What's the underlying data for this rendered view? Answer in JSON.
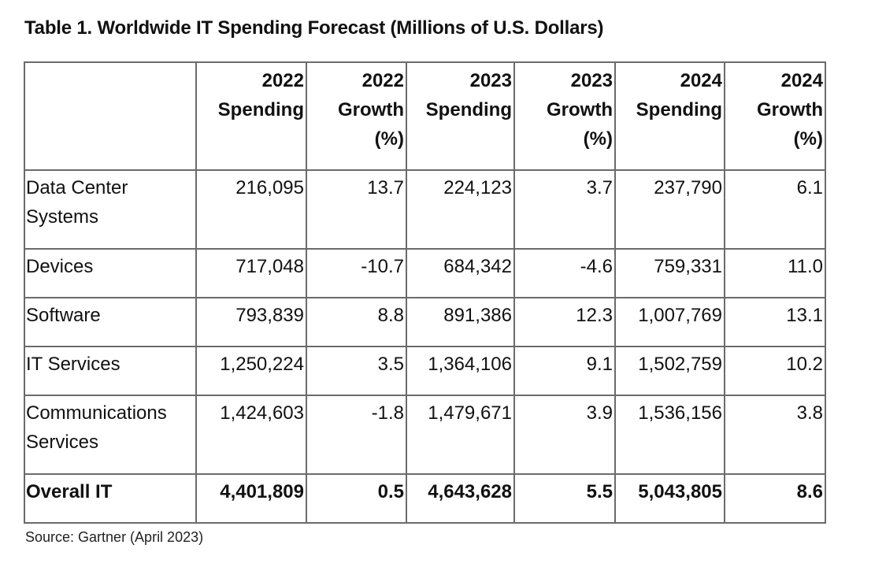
{
  "title": "Table 1. Worldwide IT Spending Forecast (Millions of U.S. Dollars)",
  "table": {
    "columns": [
      {
        "lines": [
          "",
          "",
          ""
        ]
      },
      {
        "lines": [
          "2022",
          "Spending",
          ""
        ]
      },
      {
        "lines": [
          "2022",
          "Growth",
          "(%)"
        ]
      },
      {
        "lines": [
          "2023",
          "Spending",
          ""
        ]
      },
      {
        "lines": [
          "2023",
          "Growth",
          "(%)"
        ]
      },
      {
        "lines": [
          "2024",
          "Spending",
          ""
        ]
      },
      {
        "lines": [
          "2024",
          "Growth",
          "(%)"
        ]
      }
    ],
    "rows": [
      {
        "label_lines": [
          "Data Center",
          "Systems"
        ],
        "values": [
          "216,095",
          "13.7",
          "224,123",
          "3.7",
          "237,790",
          "6.1"
        ]
      },
      {
        "label_lines": [
          "Devices",
          ""
        ],
        "values": [
          "717,048",
          "-10.7",
          "684,342",
          "-4.6",
          "759,331",
          "11.0"
        ]
      },
      {
        "label_lines": [
          "Software",
          ""
        ],
        "values": [
          "793,839",
          "8.8",
          "891,386",
          "12.3",
          "1,007,769",
          "13.1"
        ]
      },
      {
        "label_lines": [
          "IT Services",
          ""
        ],
        "values": [
          "1,250,224",
          "3.5",
          "1,364,106",
          "9.1",
          "1,502,759",
          "10.2"
        ]
      },
      {
        "label_lines": [
          "Communications",
          "Services"
        ],
        "values": [
          "1,424,603",
          "-1.8",
          "1,479,671",
          "3.9",
          "1,536,156",
          "3.8"
        ]
      },
      {
        "label_lines": [
          "Overall IT",
          ""
        ],
        "values": [
          "4,401,809",
          "0.5",
          "4,643,628",
          "5.5",
          "5,043,805",
          "8.6"
        ]
      }
    ]
  },
  "source": "Source: Gartner (April 2023)"
}
